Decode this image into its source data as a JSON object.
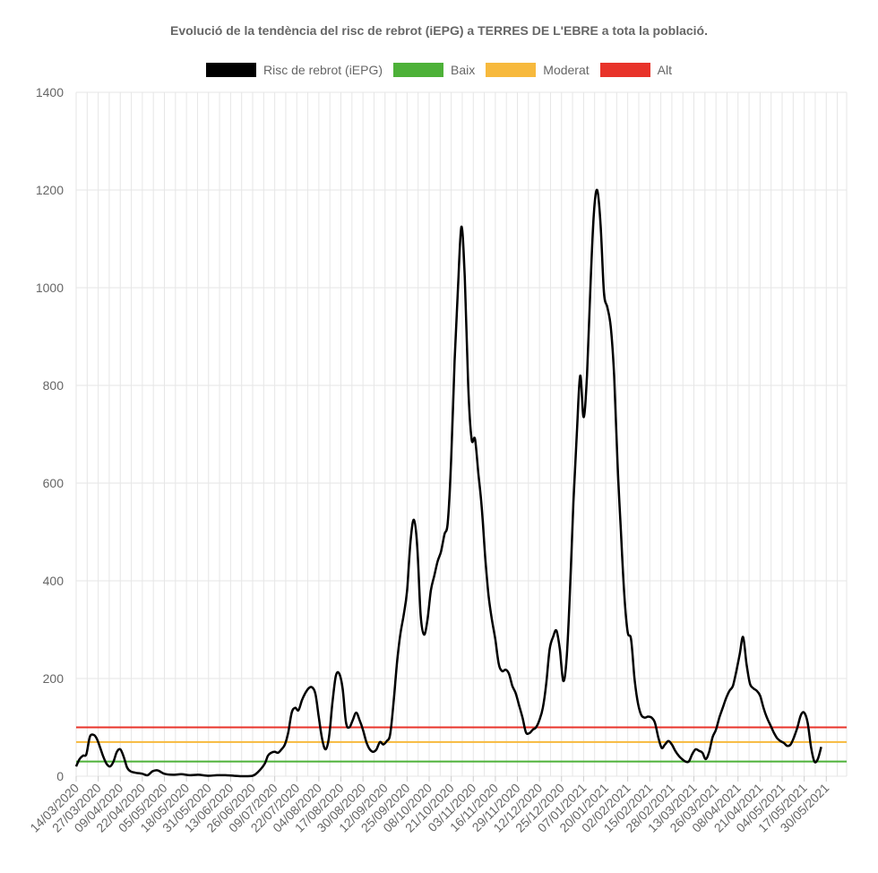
{
  "chart_data": {
    "type": "line",
    "title": "Evolució de la tendència del risc de rebrot (iEPG) a TERRES DE L'EBRE a tota la població.",
    "xlabel": "",
    "ylabel": "",
    "ylim": [
      0,
      1400
    ],
    "yticks": [
      0,
      200,
      400,
      600,
      800,
      1000,
      1200,
      1400
    ],
    "xlim": [
      "2020-03-14",
      "2021-06-11"
    ],
    "xticks": [
      "14/03/2020",
      "27/03/2020",
      "09/04/2020",
      "22/04/2020",
      "05/05/2020",
      "18/05/2020",
      "31/05/2020",
      "13/06/2020",
      "26/06/2020",
      "09/07/2020",
      "22/07/2020",
      "04/08/2020",
      "17/08/2020",
      "30/08/2020",
      "12/09/2020",
      "25/09/2020",
      "08/10/2020",
      "21/10/2020",
      "03/11/2020",
      "16/11/2020",
      "29/11/2020",
      "12/12/2020",
      "25/12/2020",
      "07/01/2021",
      "20/01/2021",
      "02/02/2021",
      "15/02/2021",
      "28/02/2021",
      "13/03/2021",
      "26/03/2021",
      "08/04/2021",
      "21/04/2021",
      "04/05/2021",
      "17/05/2021",
      "30/05/2021"
    ],
    "grid": true,
    "legend_position": "top",
    "series": [
      {
        "name": "Risc de rebrot (iEPG)",
        "color": "#000000",
        "points": [
          [
            "2020-03-14",
            20
          ],
          [
            "2020-03-16",
            35
          ],
          [
            "2020-03-18",
            42
          ],
          [
            "2020-03-20",
            45
          ],
          [
            "2020-03-22",
            80
          ],
          [
            "2020-03-24",
            85
          ],
          [
            "2020-03-26",
            78
          ],
          [
            "2020-03-28",
            60
          ],
          [
            "2020-03-30",
            40
          ],
          [
            "2020-04-01",
            25
          ],
          [
            "2020-04-03",
            20
          ],
          [
            "2020-04-05",
            30
          ],
          [
            "2020-04-07",
            50
          ],
          [
            "2020-04-09",
            55
          ],
          [
            "2020-04-11",
            40
          ],
          [
            "2020-04-13",
            18
          ],
          [
            "2020-04-15",
            10
          ],
          [
            "2020-04-18",
            7
          ],
          [
            "2020-04-22",
            5
          ],
          [
            "2020-04-25",
            2
          ],
          [
            "2020-04-28",
            10
          ],
          [
            "2020-05-01",
            12
          ],
          [
            "2020-05-05",
            5
          ],
          [
            "2020-05-10",
            3
          ],
          [
            "2020-05-15",
            4
          ],
          [
            "2020-05-20",
            2
          ],
          [
            "2020-05-25",
            3
          ],
          [
            "2020-05-31",
            1
          ],
          [
            "2020-06-05",
            2
          ],
          [
            "2020-06-10",
            2
          ],
          [
            "2020-06-15",
            1
          ],
          [
            "2020-06-20",
            0
          ],
          [
            "2020-06-26",
            1
          ],
          [
            "2020-06-29",
            8
          ],
          [
            "2020-07-03",
            25
          ],
          [
            "2020-07-05",
            42
          ],
          [
            "2020-07-07",
            48
          ],
          [
            "2020-07-09",
            50
          ],
          [
            "2020-07-11",
            48
          ],
          [
            "2020-07-13",
            55
          ],
          [
            "2020-07-15",
            65
          ],
          [
            "2020-07-17",
            90
          ],
          [
            "2020-07-19",
            130
          ],
          [
            "2020-07-21",
            140
          ],
          [
            "2020-07-23",
            135
          ],
          [
            "2020-07-25",
            155
          ],
          [
            "2020-07-27",
            170
          ],
          [
            "2020-07-29",
            180
          ],
          [
            "2020-07-31",
            182
          ],
          [
            "2020-08-02",
            168
          ],
          [
            "2020-08-04",
            120
          ],
          [
            "2020-08-06",
            75
          ],
          [
            "2020-08-08",
            55
          ],
          [
            "2020-08-10",
            80
          ],
          [
            "2020-08-12",
            150
          ],
          [
            "2020-08-14",
            205
          ],
          [
            "2020-08-16",
            210
          ],
          [
            "2020-08-18",
            180
          ],
          [
            "2020-08-20",
            110
          ],
          [
            "2020-08-22",
            100
          ],
          [
            "2020-08-24",
            115
          ],
          [
            "2020-08-26",
            130
          ],
          [
            "2020-08-28",
            115
          ],
          [
            "2020-08-30",
            95
          ],
          [
            "2020-09-01",
            70
          ],
          [
            "2020-09-03",
            55
          ],
          [
            "2020-09-05",
            50
          ],
          [
            "2020-09-07",
            55
          ],
          [
            "2020-09-09",
            70
          ],
          [
            "2020-09-11",
            65
          ],
          [
            "2020-09-13",
            72
          ],
          [
            "2020-09-15",
            85
          ],
          [
            "2020-09-17",
            150
          ],
          [
            "2020-09-19",
            230
          ],
          [
            "2020-09-21",
            290
          ],
          [
            "2020-09-23",
            330
          ],
          [
            "2020-09-25",
            380
          ],
          [
            "2020-09-27",
            480
          ],
          [
            "2020-09-29",
            525
          ],
          [
            "2020-10-01",
            470
          ],
          [
            "2020-10-03",
            330
          ],
          [
            "2020-10-05",
            290
          ],
          [
            "2020-10-07",
            320
          ],
          [
            "2020-10-09",
            380
          ],
          [
            "2020-10-11",
            410
          ],
          [
            "2020-10-13",
            440
          ],
          [
            "2020-10-15",
            460
          ],
          [
            "2020-10-17",
            495
          ],
          [
            "2020-10-19",
            520
          ],
          [
            "2020-10-21",
            650
          ],
          [
            "2020-10-23",
            850
          ],
          [
            "2020-10-25",
            1000
          ],
          [
            "2020-10-27",
            1125
          ],
          [
            "2020-10-29",
            1020
          ],
          [
            "2020-10-31",
            800
          ],
          [
            "2020-11-02",
            690
          ],
          [
            "2020-11-04",
            690
          ],
          [
            "2020-11-06",
            620
          ],
          [
            "2020-11-08",
            550
          ],
          [
            "2020-11-10",
            450
          ],
          [
            "2020-11-12",
            370
          ],
          [
            "2020-11-14",
            320
          ],
          [
            "2020-11-16",
            280
          ],
          [
            "2020-11-18",
            230
          ],
          [
            "2020-11-20",
            215
          ],
          [
            "2020-11-22",
            218
          ],
          [
            "2020-11-24",
            210
          ],
          [
            "2020-11-26",
            185
          ],
          [
            "2020-11-28",
            170
          ],
          [
            "2020-11-30",
            145
          ],
          [
            "2020-12-02",
            120
          ],
          [
            "2020-12-04",
            90
          ],
          [
            "2020-12-06",
            88
          ],
          [
            "2020-12-08",
            95
          ],
          [
            "2020-12-10",
            100
          ],
          [
            "2020-12-12",
            115
          ],
          [
            "2020-12-14",
            140
          ],
          [
            "2020-12-16",
            190
          ],
          [
            "2020-12-18",
            260
          ],
          [
            "2020-12-20",
            285
          ],
          [
            "2020-12-22",
            298
          ],
          [
            "2020-12-24",
            260
          ],
          [
            "2020-12-26",
            195
          ],
          [
            "2020-12-28",
            240
          ],
          [
            "2020-12-30",
            380
          ],
          [
            "2021-01-01",
            560
          ],
          [
            "2021-01-03",
            700
          ],
          [
            "2021-01-05",
            820
          ],
          [
            "2021-01-07",
            735
          ],
          [
            "2021-01-09",
            820
          ],
          [
            "2021-01-11",
            1000
          ],
          [
            "2021-01-13",
            1150
          ],
          [
            "2021-01-15",
            1200
          ],
          [
            "2021-01-17",
            1130
          ],
          [
            "2021-01-19",
            990
          ],
          [
            "2021-01-21",
            960
          ],
          [
            "2021-01-23",
            920
          ],
          [
            "2021-01-25",
            820
          ],
          [
            "2021-01-27",
            640
          ],
          [
            "2021-01-29",
            500
          ],
          [
            "2021-01-31",
            370
          ],
          [
            "2021-02-02",
            295
          ],
          [
            "2021-02-04",
            280
          ],
          [
            "2021-02-06",
            200
          ],
          [
            "2021-02-08",
            150
          ],
          [
            "2021-02-10",
            125
          ],
          [
            "2021-02-12",
            120
          ],
          [
            "2021-02-14",
            122
          ],
          [
            "2021-02-16",
            120
          ],
          [
            "2021-02-18",
            110
          ],
          [
            "2021-02-20",
            80
          ],
          [
            "2021-02-22",
            58
          ],
          [
            "2021-02-24",
            65
          ],
          [
            "2021-02-26",
            72
          ],
          [
            "2021-02-28",
            65
          ],
          [
            "2021-03-02",
            52
          ],
          [
            "2021-03-04",
            42
          ],
          [
            "2021-03-06",
            35
          ],
          [
            "2021-03-08",
            30
          ],
          [
            "2021-03-10",
            30
          ],
          [
            "2021-03-12",
            45
          ],
          [
            "2021-03-14",
            55
          ],
          [
            "2021-03-16",
            52
          ],
          [
            "2021-03-18",
            48
          ],
          [
            "2021-03-20",
            35
          ],
          [
            "2021-03-22",
            50
          ],
          [
            "2021-03-24",
            80
          ],
          [
            "2021-03-26",
            95
          ],
          [
            "2021-03-28",
            120
          ],
          [
            "2021-03-30",
            140
          ],
          [
            "2021-04-01",
            160
          ],
          [
            "2021-04-03",
            175
          ],
          [
            "2021-04-05",
            185
          ],
          [
            "2021-04-07",
            215
          ],
          [
            "2021-04-09",
            250
          ],
          [
            "2021-04-11",
            285
          ],
          [
            "2021-04-13",
            230
          ],
          [
            "2021-04-15",
            190
          ],
          [
            "2021-04-17",
            180
          ],
          [
            "2021-04-19",
            175
          ],
          [
            "2021-04-21",
            165
          ],
          [
            "2021-04-23",
            140
          ],
          [
            "2021-04-25",
            120
          ],
          [
            "2021-04-27",
            105
          ],
          [
            "2021-04-29",
            90
          ],
          [
            "2021-05-01",
            78
          ],
          [
            "2021-05-03",
            72
          ],
          [
            "2021-05-05",
            68
          ],
          [
            "2021-05-07",
            62
          ],
          [
            "2021-05-09",
            65
          ],
          [
            "2021-05-11",
            80
          ],
          [
            "2021-05-13",
            100
          ],
          [
            "2021-05-15",
            125
          ],
          [
            "2021-05-17",
            130
          ],
          [
            "2021-05-19",
            110
          ],
          [
            "2021-05-21",
            60
          ],
          [
            "2021-05-23",
            30
          ],
          [
            "2021-05-25",
            35
          ],
          [
            "2021-05-27",
            60
          ]
        ]
      },
      {
        "name": "Baix",
        "color": "#4db138",
        "constant": 30
      },
      {
        "name": "Moderat",
        "color": "#f7b93d",
        "constant": 70
      },
      {
        "name": "Alt",
        "color": "#e8332a",
        "constant": 100
      }
    ]
  }
}
